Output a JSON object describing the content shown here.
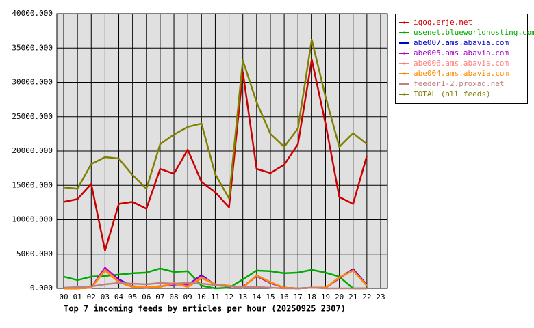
{
  "chart_data": {
    "type": "line",
    "title": "Top 7 incoming feeds by articles per hour (20250925 2307)",
    "categories": [
      "00",
      "01",
      "02",
      "03",
      "04",
      "05",
      "06",
      "07",
      "08",
      "09",
      "10",
      "11",
      "12",
      "13",
      "14",
      "15",
      "16",
      "17",
      "18",
      "19",
      "20",
      "21",
      "22",
      "23"
    ],
    "ylim": [
      0,
      40000
    ],
    "yticks": [
      {
        "value": 0,
        "label": "0.000"
      },
      {
        "value": 5000,
        "label": "5000.000"
      },
      {
        "value": 10000,
        "label": "10000.000"
      },
      {
        "value": 15000,
        "label": "15000.000"
      },
      {
        "value": 20000,
        "label": "20000.000"
      },
      {
        "value": 25000,
        "label": "25000.000"
      },
      {
        "value": 30000,
        "label": "30000.000"
      },
      {
        "value": 35000,
        "label": "35000.000"
      },
      {
        "value": 40000,
        "label": "40000.000"
      }
    ],
    "grid": true,
    "legend": "right",
    "series": [
      {
        "name": "iqoq.erje.net",
        "color": "#cc0000",
        "values": [
          12600,
          13000,
          15200,
          5500,
          12300,
          12600,
          11600,
          17400,
          16700,
          20200,
          15500,
          14000,
          11800,
          31500,
          17400,
          16800,
          18000,
          21000,
          33300,
          24000,
          13300,
          12300,
          19300,
          null
        ]
      },
      {
        "name": "usenet.blueworldhosting.com",
        "color": "#00aa00",
        "values": [
          1700,
          1200,
          1700,
          1800,
          2000,
          2200,
          2300,
          2900,
          2400,
          2500,
          400,
          0,
          100,
          1300,
          2600,
          2500,
          2200,
          2300,
          2700,
          2300,
          1700,
          0,
          0,
          null
        ]
      },
      {
        "name": "abe007.ams.abavia.com",
        "color": "#0000cc",
        "values": [
          0,
          0,
          100,
          2900,
          1300,
          300,
          200,
          300,
          600,
          500,
          1900,
          500,
          300,
          200,
          1800,
          800,
          100,
          0,
          100,
          100,
          1500,
          2800,
          500,
          null
        ]
      },
      {
        "name": "abe005.ams.abavia.com",
        "color": "#aa00cc",
        "values": [
          0,
          0,
          100,
          3000,
          1200,
          300,
          200,
          300,
          600,
          500,
          1800,
          500,
          300,
          200,
          1800,
          800,
          100,
          0,
          100,
          100,
          1500,
          2700,
          500,
          null
        ]
      },
      {
        "name": "abe006.ams.abavia.com",
        "color": "#ff8080",
        "values": [
          0,
          0,
          100,
          2700,
          1000,
          300,
          200,
          300,
          700,
          300,
          1600,
          600,
          400,
          100,
          1900,
          900,
          100,
          0,
          100,
          100,
          1600,
          2600,
          400,
          null
        ]
      },
      {
        "name": "abe004.ams.abavia.com",
        "color": "#ff8800",
        "values": [
          0,
          0,
          100,
          2600,
          900,
          200,
          100,
          200,
          800,
          200,
          1500,
          600,
          400,
          100,
          1900,
          900,
          100,
          0,
          100,
          100,
          1600,
          2600,
          400,
          null
        ]
      },
      {
        "name": "feeder1-2.proxad.net",
        "color": "#c08080",
        "values": [
          100,
          200,
          300,
          600,
          800,
          700,
          600,
          800,
          700,
          800,
          700,
          500,
          300,
          200,
          200,
          100,
          0,
          0,
          100,
          0,
          0,
          0,
          0,
          null
        ]
      },
      {
        "name": "TOTAL (all feeds)",
        "color": "#808000",
        "values": [
          14700,
          14500,
          18100,
          19100,
          18900,
          16500,
          14500,
          21000,
          22400,
          23500,
          24000,
          16600,
          13100,
          33200,
          27100,
          22500,
          20600,
          23300,
          36200,
          27900,
          20600,
          22600,
          21000,
          null
        ]
      }
    ]
  }
}
